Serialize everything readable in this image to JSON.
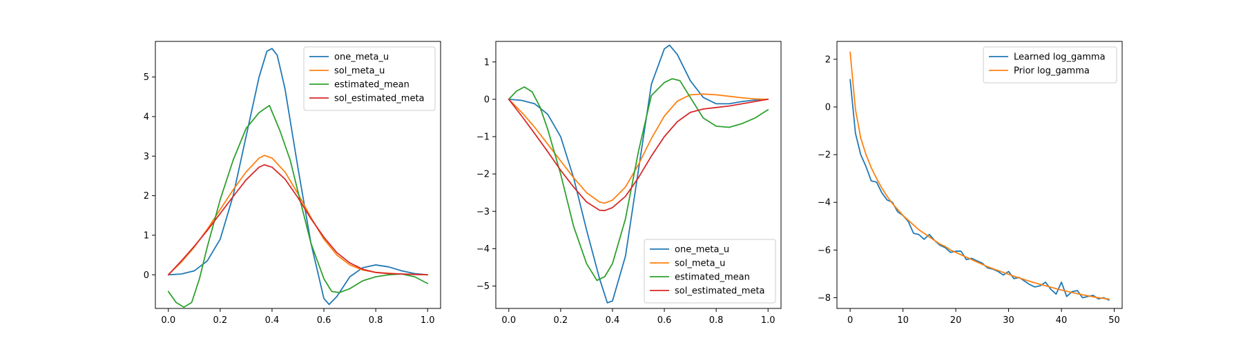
{
  "chart_data": [
    {
      "type": "line",
      "xlim": [
        -0.05,
        1.05
      ],
      "ylim": [
        -0.85,
        5.9
      ],
      "xticks": [
        0.0,
        0.2,
        0.4,
        0.6,
        0.8,
        1.0
      ],
      "xtick_labels": [
        "0.0",
        "0.2",
        "0.4",
        "0.6",
        "0.8",
        "1.0"
      ],
      "yticks": [
        0,
        1,
        2,
        3,
        4,
        5
      ],
      "ytick_labels": [
        "0",
        "1",
        "2",
        "3",
        "4",
        "5"
      ],
      "grid": false,
      "legend_position": "upper right",
      "series": [
        {
          "name": "one_meta_u",
          "color": "#1f77b4",
          "x": [
            0,
            0.05,
            0.1,
            0.15,
            0.2,
            0.25,
            0.3,
            0.35,
            0.38,
            0.4,
            0.42,
            0.45,
            0.5,
            0.55,
            0.6,
            0.62,
            0.65,
            0.7,
            0.75,
            0.8,
            0.85,
            0.9,
            0.95,
            1.0
          ],
          "y": [
            0,
            0.02,
            0.1,
            0.35,
            0.9,
            2.0,
            3.5,
            5.0,
            5.65,
            5.72,
            5.55,
            4.7,
            2.7,
            0.8,
            -0.6,
            -0.75,
            -0.55,
            -0.05,
            0.18,
            0.25,
            0.2,
            0.1,
            0.03,
            0
          ]
        },
        {
          "name": "sol_meta_u",
          "color": "#ff7f0e",
          "x": [
            0,
            0.05,
            0.1,
            0.15,
            0.2,
            0.25,
            0.3,
            0.35,
            0.37,
            0.4,
            0.45,
            0.5,
            0.55,
            0.6,
            0.65,
            0.7,
            0.75,
            0.8,
            0.85,
            0.9,
            0.95,
            1.0
          ],
          "y": [
            0,
            0.32,
            0.7,
            1.15,
            1.65,
            2.15,
            2.6,
            2.95,
            3.02,
            2.95,
            2.6,
            2.05,
            1.45,
            0.9,
            0.5,
            0.25,
            0.12,
            0.06,
            0.04,
            0.02,
            0.01,
            0
          ]
        },
        {
          "name": "estimated_mean",
          "color": "#2ca02c",
          "x": [
            0,
            0.03,
            0.06,
            0.09,
            0.12,
            0.15,
            0.2,
            0.25,
            0.3,
            0.35,
            0.39,
            0.43,
            0.47,
            0.5,
            0.55,
            0.6,
            0.63,
            0.66,
            0.7,
            0.75,
            0.8,
            0.85,
            0.9,
            0.95,
            1.0
          ],
          "y": [
            -0.42,
            -0.7,
            -0.82,
            -0.7,
            -0.1,
            0.7,
            1.9,
            2.9,
            3.7,
            4.1,
            4.28,
            3.65,
            2.9,
            2.1,
            0.8,
            -0.1,
            -0.42,
            -0.45,
            -0.35,
            -0.15,
            -0.05,
            0.0,
            0.02,
            -0.05,
            -0.22
          ]
        },
        {
          "name": "sol_estimated_meta",
          "color": "#d62728",
          "x": [
            0,
            0.05,
            0.1,
            0.15,
            0.2,
            0.25,
            0.3,
            0.35,
            0.37,
            0.4,
            0.45,
            0.5,
            0.55,
            0.6,
            0.65,
            0.7,
            0.75,
            0.8,
            0.85,
            0.9,
            0.95,
            1.0
          ],
          "y": [
            0,
            0.35,
            0.72,
            1.12,
            1.55,
            1.98,
            2.4,
            2.72,
            2.78,
            2.72,
            2.42,
            1.95,
            1.42,
            0.95,
            0.56,
            0.3,
            0.14,
            0.06,
            0.03,
            0.02,
            0.01,
            0
          ]
        }
      ]
    },
    {
      "type": "line",
      "xlim": [
        -0.05,
        1.05
      ],
      "ylim": [
        -5.6,
        1.55
      ],
      "xticks": [
        0.0,
        0.2,
        0.4,
        0.6,
        0.8,
        1.0
      ],
      "xtick_labels": [
        "0.0",
        "0.2",
        "0.4",
        "0.6",
        "0.8",
        "1.0"
      ],
      "yticks": [
        -5,
        -4,
        -3,
        -2,
        -1,
        0,
        1
      ],
      "ytick_labels": [
        "−5",
        "−4",
        "−3",
        "−2",
        "−1",
        "0",
        "1"
      ],
      "grid": false,
      "legend_position": "lower right",
      "series": [
        {
          "name": "one_meta_u",
          "color": "#1f77b4",
          "x": [
            0,
            0.05,
            0.1,
            0.15,
            0.2,
            0.25,
            0.3,
            0.35,
            0.38,
            0.4,
            0.45,
            0.5,
            0.55,
            0.6,
            0.62,
            0.65,
            0.7,
            0.75,
            0.8,
            0.85,
            0.9,
            0.95,
            1.0
          ],
          "y": [
            0,
            -0.03,
            -0.12,
            -0.4,
            -1.0,
            -2.1,
            -3.5,
            -4.8,
            -5.45,
            -5.4,
            -4.2,
            -1.9,
            0.4,
            1.35,
            1.45,
            1.2,
            0.5,
            0.05,
            -0.12,
            -0.12,
            -0.06,
            -0.02,
            0
          ]
        },
        {
          "name": "sol_meta_u",
          "color": "#ff7f0e",
          "x": [
            0,
            0.05,
            0.1,
            0.15,
            0.2,
            0.25,
            0.3,
            0.35,
            0.37,
            0.4,
            0.45,
            0.5,
            0.55,
            0.6,
            0.65,
            0.7,
            0.75,
            0.8,
            0.85,
            0.9,
            0.95,
            1.0
          ],
          "y": [
            0,
            -0.35,
            -0.75,
            -1.2,
            -1.65,
            -2.1,
            -2.5,
            -2.75,
            -2.78,
            -2.7,
            -2.35,
            -1.75,
            -1.05,
            -0.45,
            -0.05,
            0.12,
            0.14,
            0.12,
            0.08,
            0.04,
            0.01,
            0
          ]
        },
        {
          "name": "estimated_mean",
          "color": "#2ca02c",
          "x": [
            0,
            0.03,
            0.06,
            0.09,
            0.12,
            0.15,
            0.2,
            0.25,
            0.3,
            0.34,
            0.37,
            0.4,
            0.45,
            0.5,
            0.55,
            0.6,
            0.63,
            0.66,
            0.7,
            0.75,
            0.8,
            0.85,
            0.9,
            0.95,
            1.0
          ],
          "y": [
            0,
            0.22,
            0.33,
            0.2,
            -0.2,
            -0.8,
            -2.0,
            -3.4,
            -4.4,
            -4.85,
            -4.75,
            -4.4,
            -3.2,
            -1.4,
            0.1,
            0.45,
            0.55,
            0.5,
            0.05,
            -0.5,
            -0.72,
            -0.75,
            -0.65,
            -0.5,
            -0.28
          ]
        },
        {
          "name": "sol_estimated_meta",
          "color": "#d62728",
          "x": [
            0,
            0.05,
            0.1,
            0.15,
            0.2,
            0.25,
            0.3,
            0.35,
            0.37,
            0.4,
            0.45,
            0.5,
            0.55,
            0.6,
            0.65,
            0.7,
            0.75,
            0.8,
            0.85,
            0.9,
            0.95,
            1.0
          ],
          "y": [
            0,
            -0.45,
            -0.92,
            -1.4,
            -1.9,
            -2.35,
            -2.75,
            -2.97,
            -2.98,
            -2.9,
            -2.6,
            -2.1,
            -1.52,
            -1.0,
            -0.6,
            -0.35,
            -0.26,
            -0.22,
            -0.18,
            -0.12,
            -0.06,
            0
          ]
        }
      ]
    },
    {
      "type": "line",
      "xlim": [
        -2.5,
        51.5
      ],
      "ylim": [
        -8.45,
        2.75
      ],
      "xticks": [
        0,
        10,
        20,
        30,
        40,
        50
      ],
      "xtick_labels": [
        "0",
        "10",
        "20",
        "30",
        "40",
        "50"
      ],
      "yticks": [
        -8,
        -6,
        -4,
        -2,
        0,
        2
      ],
      "ytick_labels": [
        "−8",
        "−6",
        "−4",
        "−2",
        "0",
        "2"
      ],
      "grid": false,
      "legend_position": "upper right",
      "series": [
        {
          "name": "Learned log_gamma",
          "color": "#1f77b4",
          "x": [
            0,
            1,
            2,
            3,
            4,
            5,
            6,
            7,
            8,
            9,
            10,
            11,
            12,
            13,
            14,
            15,
            16,
            17,
            18,
            19,
            20,
            21,
            22,
            23,
            24,
            25,
            26,
            27,
            28,
            29,
            30,
            31,
            32,
            33,
            34,
            35,
            36,
            37,
            38,
            39,
            40,
            41,
            42,
            43,
            44,
            45,
            46,
            47,
            48,
            49
          ],
          "y": [
            1.15,
            -1.1,
            -2.0,
            -2.5,
            -3.1,
            -3.15,
            -3.6,
            -3.9,
            -4.0,
            -4.4,
            -4.55,
            -4.8,
            -5.3,
            -5.35,
            -5.55,
            -5.35,
            -5.6,
            -5.8,
            -5.9,
            -6.1,
            -6.05,
            -6.05,
            -6.4,
            -6.35,
            -6.45,
            -6.55,
            -6.75,
            -6.8,
            -6.9,
            -7.05,
            -6.9,
            -7.2,
            -7.15,
            -7.3,
            -7.45,
            -7.55,
            -7.5,
            -7.35,
            -7.65,
            -7.85,
            -7.35,
            -7.95,
            -7.75,
            -7.7,
            -8.0,
            -7.95,
            -7.9,
            -8.05,
            -8.0,
            -8.1
          ]
        },
        {
          "name": "Prior log_gamma",
          "color": "#ff7f0e",
          "x": [
            0,
            1,
            2,
            3,
            4,
            5,
            6,
            7,
            8,
            9,
            10,
            11,
            12,
            13,
            14,
            15,
            16,
            17,
            18,
            19,
            20,
            21,
            22,
            23,
            24,
            25,
            26,
            27,
            28,
            29,
            30,
            31,
            32,
            33,
            34,
            35,
            36,
            37,
            38,
            39,
            40,
            41,
            42,
            43,
            44,
            45,
            46,
            47,
            48,
            49
          ],
          "y": [
            2.3,
            -0.1,
            -1.3,
            -2.0,
            -2.55,
            -3.0,
            -3.4,
            -3.75,
            -4.05,
            -4.3,
            -4.55,
            -4.75,
            -4.95,
            -5.15,
            -5.3,
            -5.45,
            -5.6,
            -5.75,
            -5.85,
            -6.0,
            -6.1,
            -6.2,
            -6.3,
            -6.4,
            -6.5,
            -6.6,
            -6.7,
            -6.78,
            -6.86,
            -6.94,
            -7.02,
            -7.1,
            -7.17,
            -7.24,
            -7.31,
            -7.38,
            -7.44,
            -7.5,
            -7.56,
            -7.62,
            -7.68,
            -7.73,
            -7.78,
            -7.83,
            -7.88,
            -7.92,
            -7.96,
            -8.0,
            -8.03,
            -8.06
          ]
        }
      ]
    }
  ]
}
